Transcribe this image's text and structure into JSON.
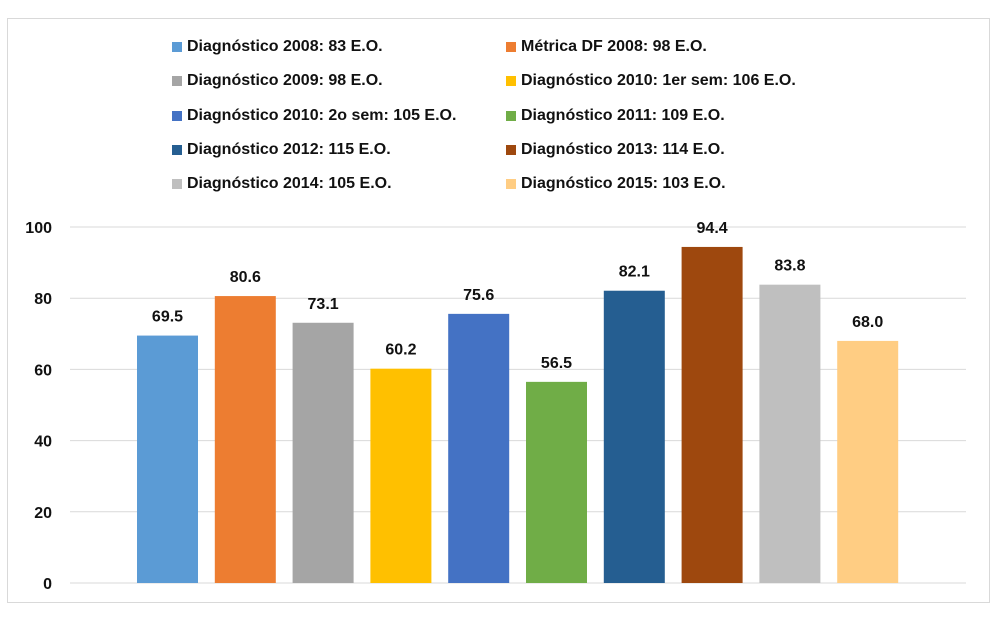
{
  "chart_data": {
    "type": "bar",
    "title": "",
    "xlabel": "",
    "ylabel": "",
    "ylim": [
      0,
      100
    ],
    "yticks": [
      0,
      20,
      40,
      60,
      80,
      100
    ],
    "grid": true,
    "legend_position": "top",
    "series": [
      {
        "name": "Diagnóstico 2008: 83 E.O.",
        "value": 69.5,
        "label": "69.5",
        "color": "#5b9bd5"
      },
      {
        "name": "Métrica DF 2008: 98 E.O.",
        "value": 80.6,
        "label": "80.6",
        "color": "#ed7d31"
      },
      {
        "name": "Diagnóstico 2009: 98 E.O.",
        "value": 73.1,
        "label": "73.1",
        "color": "#a5a5a5"
      },
      {
        "name": "Diagnóstico 2010: 1er sem: 106 E.O.",
        "value": 60.2,
        "label": "60.2",
        "color": "#ffc000"
      },
      {
        "name": "Diagnóstico 2010: 2o sem: 105 E.O.",
        "value": 75.6,
        "label": "75.6",
        "color": "#4472c4"
      },
      {
        "name": "Diagnóstico 2011: 109 E.O.",
        "value": 56.5,
        "label": "56.5",
        "color": "#70ad47"
      },
      {
        "name": "Diagnóstico 2012: 115 E.O.",
        "value": 82.1,
        "label": "82.1",
        "color": "#255e91"
      },
      {
        "name": "Diagnóstico 2013: 114 E.O.",
        "value": 94.4,
        "label": "94.4",
        "color": "#9e480e"
      },
      {
        "name": "Diagnóstico 2014: 105 E.O.",
        "value": 83.8,
        "label": "83.8",
        "color": "#bfbfbf"
      },
      {
        "name": "Diagnóstico 2015: 103 E.O.",
        "value": 68.0,
        "label": "68.0",
        "color": "#ffcd83"
      }
    ]
  }
}
